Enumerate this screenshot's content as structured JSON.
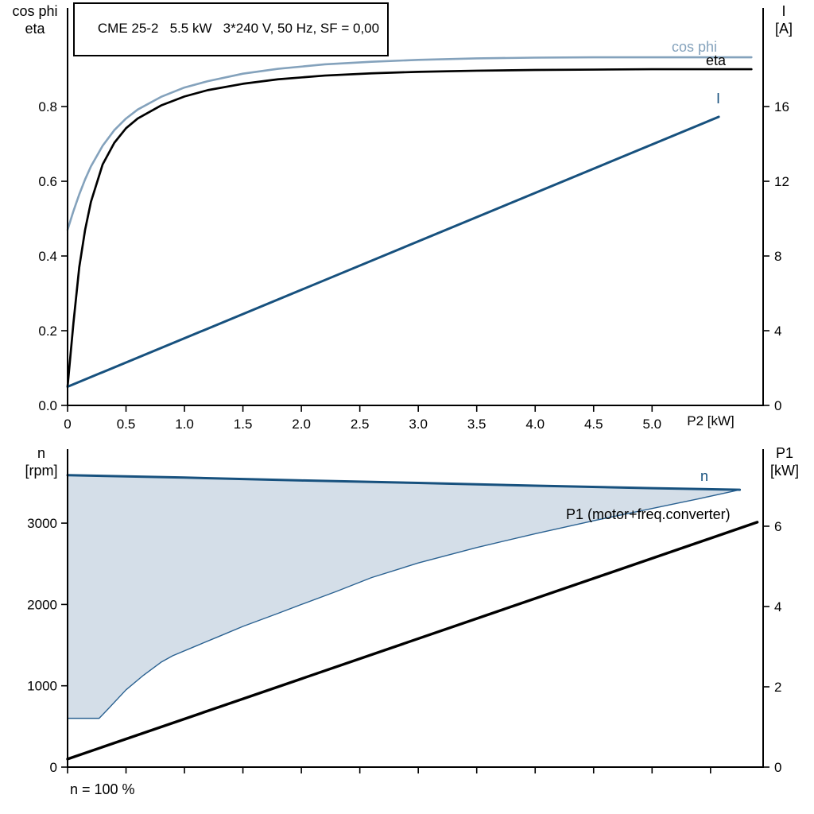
{
  "chart_data": [
    {
      "type": "line",
      "title": "CME 25-2   5.5 kW   3*240 V, 50 Hz, SF = 0,00",
      "x_axis": {
        "label": "P2 [kW]",
        "min": 0,
        "max": 5.95,
        "ticks": [
          0,
          0.5,
          1,
          1.5,
          2,
          2.5,
          3,
          3.5,
          4,
          4.5,
          5
        ],
        "tick_labels": [
          "0",
          "0.5",
          "1.0",
          "1.5",
          "2.0",
          "2.5",
          "3.0",
          "3.5",
          "4.0",
          "4.5",
          "5.0"
        ]
      },
      "y_left": {
        "label_lines": [
          "cos phi",
          "eta"
        ],
        "min": 0,
        "max": 1.064,
        "ticks": [
          0,
          0.2,
          0.4,
          0.6,
          0.8
        ],
        "tick_labels": [
          "0.0",
          "0.2",
          "0.4",
          "0.6",
          "0.8"
        ]
      },
      "y_right": {
        "label_lines": [
          "I",
          "[A]"
        ],
        "min": 0,
        "max": 21.28,
        "ticks": [
          0,
          4,
          8,
          12,
          16
        ],
        "tick_labels": [
          "0",
          "4",
          "8",
          "12",
          "16"
        ]
      },
      "series": [
        {
          "name": "cos phi",
          "axis": "left",
          "color": "#84a2bc",
          "width": 2.6,
          "points": [
            [
              0,
              0.47
            ],
            [
              0.05,
              0.52
            ],
            [
              0.1,
              0.565
            ],
            [
              0.15,
              0.605
            ],
            [
              0.2,
              0.64
            ],
            [
              0.3,
              0.695
            ],
            [
              0.4,
              0.737
            ],
            [
              0.5,
              0.768
            ],
            [
              0.6,
              0.792
            ],
            [
              0.8,
              0.826
            ],
            [
              1.0,
              0.851
            ],
            [
              1.2,
              0.868
            ],
            [
              1.5,
              0.888
            ],
            [
              1.8,
              0.901
            ],
            [
              2.2,
              0.913
            ],
            [
              2.6,
              0.92
            ],
            [
              3.0,
              0.925
            ],
            [
              3.5,
              0.929
            ],
            [
              4.0,
              0.931
            ],
            [
              4.5,
              0.932
            ],
            [
              5.0,
              0.932
            ],
            [
              5.85,
              0.932
            ]
          ]
        },
        {
          "name": "eta",
          "axis": "left",
          "color": "#000000",
          "width": 2.7,
          "points": [
            [
              0,
              0.05
            ],
            [
              0.05,
              0.22
            ],
            [
              0.1,
              0.37
            ],
            [
              0.15,
              0.47
            ],
            [
              0.2,
              0.545
            ],
            [
              0.3,
              0.645
            ],
            [
              0.4,
              0.703
            ],
            [
              0.5,
              0.742
            ],
            [
              0.6,
              0.768
            ],
            [
              0.8,
              0.803
            ],
            [
              1.0,
              0.827
            ],
            [
              1.2,
              0.844
            ],
            [
              1.5,
              0.861
            ],
            [
              1.8,
              0.873
            ],
            [
              2.2,
              0.883
            ],
            [
              2.6,
              0.889
            ],
            [
              3.0,
              0.893
            ],
            [
              3.5,
              0.896
            ],
            [
              4.0,
              0.898
            ],
            [
              4.5,
              0.899
            ],
            [
              5.0,
              0.9
            ],
            [
              5.85,
              0.9
            ]
          ]
        },
        {
          "name": "I",
          "axis": "right",
          "color": "#17517e",
          "width": 3,
          "points": [
            [
              0,
              1.0
            ],
            [
              5.57,
              15.45
            ]
          ]
        }
      ]
    },
    {
      "type": "line",
      "x_axis": {
        "label": "",
        "min": 0,
        "max": 5.95,
        "ticks": [
          0,
          0.5,
          1,
          1.5,
          2,
          2.5,
          3,
          3.5,
          4,
          4.5,
          5,
          5.5
        ],
        "tick_labels": []
      },
      "y_left": {
        "label_lines": [
          "n",
          "[rpm]"
        ],
        "min": 0,
        "max": 3910,
        "ticks": [
          0,
          1000,
          2000,
          3000
        ],
        "tick_labels": [
          "0",
          "1000",
          "2000",
          "3000"
        ]
      },
      "y_right": {
        "label_lines": [
          "P1",
          "[kW]"
        ],
        "min": 0,
        "max": 7.92,
        "ticks": [
          0,
          2,
          4,
          6
        ],
        "tick_labels": [
          "0",
          "2",
          "4",
          "6"
        ]
      },
      "area": {
        "fill": "#cfdae6",
        "opacity": 0.9,
        "upper_series": "n",
        "lower_series": "n range lower"
      },
      "series": [
        {
          "name": "n",
          "axis": "left",
          "color": "#17517e",
          "width": 3,
          "points": [
            [
              0,
              3590
            ],
            [
              1,
              3560
            ],
            [
              2,
              3525
            ],
            [
              3,
              3495
            ],
            [
              4,
              3460
            ],
            [
              5,
              3430
            ],
            [
              5.75,
              3410
            ]
          ]
        },
        {
          "name": "n range lower",
          "axis": "left",
          "color": "#2a6191",
          "width": 1.4,
          "points": [
            [
              0,
              600
            ],
            [
              0.27,
              600
            ],
            [
              0.35,
              720
            ],
            [
              0.5,
              950
            ],
            [
              0.65,
              1130
            ],
            [
              0.8,
              1290
            ],
            [
              0.9,
              1370
            ],
            [
              1.1,
              1490
            ],
            [
              1.3,
              1610
            ],
            [
              1.5,
              1730
            ],
            [
              1.8,
              1890
            ],
            [
              2.0,
              2000
            ],
            [
              2.3,
              2160
            ],
            [
              2.6,
              2330
            ],
            [
              3.0,
              2510
            ],
            [
              3.5,
              2700
            ],
            [
              4.0,
              2870
            ],
            [
              4.5,
              3030
            ],
            [
              5.0,
              3180
            ],
            [
              5.4,
              3300
            ],
            [
              5.75,
              3410
            ]
          ]
        },
        {
          "name": "P1 (motor+freq.converter)",
          "axis": "right",
          "color": "#000000",
          "width": 3.4,
          "points": [
            [
              0,
              0.2
            ],
            [
              5.9,
              6.1
            ]
          ]
        }
      ],
      "note": "n = 100 %"
    }
  ]
}
